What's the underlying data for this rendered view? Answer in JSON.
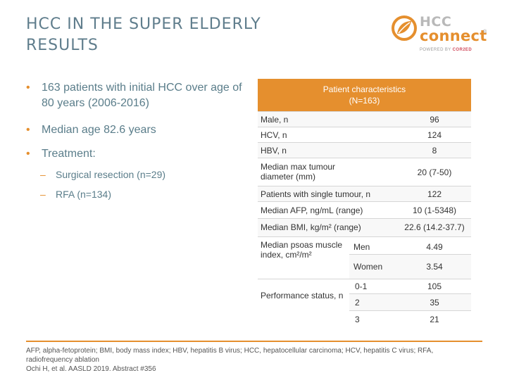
{
  "title_line1": "HCC IN THE SUPER ELDERLY",
  "title_line2": "RESULTS",
  "logo": {
    "hcc": "HCC",
    "connect": "connect",
    "reg": "®",
    "powered_by": "POWERED BY",
    "brand": "COR2ED"
  },
  "bullets": [
    "163 patients with initial HCC over age of 80 years (2006-2016)",
    "Median age 82.6 years",
    "Treatment:"
  ],
  "sub_bullets": [
    "Surgical resection (n=29)",
    "RFA (n=134)"
  ],
  "table": {
    "header_line1": "Patient characteristics",
    "header_line2": "(N=163)",
    "rows": [
      {
        "label": "Male, n",
        "value": "96"
      },
      {
        "label": "HCV, n",
        "value": "124"
      },
      {
        "label": "HBV, n",
        "value": "8"
      },
      {
        "label": "Median max tumour diameter (mm)",
        "value": "20 (7-50)"
      },
      {
        "label": "Patients with single tumour, n",
        "value": "122"
      },
      {
        "label": "Median AFP, ng/mL (range)",
        "value": "10 (1-5348)"
      },
      {
        "label": "Median BMI, kg/m² (range)",
        "value": "22.6 (14.2-37.7)"
      }
    ],
    "psoas": {
      "label": "Median psoas muscle index, cm²/m²",
      "men_label": "Men",
      "men_value": "4.49",
      "women_label": "Women",
      "women_value": "3.54"
    },
    "perf": {
      "label": "Performance status, n",
      "r1_label": "0-1",
      "r1_value": "105",
      "r2_label": "2",
      "r2_value": "35",
      "r3_label": "3",
      "r3_value": "21"
    }
  },
  "footer": {
    "abbrev": "AFP, alpha-fetoprotein; BMI, body mass index; HBV, hepatitis B virus; HCC, hepatocellular carcinoma; HCV, hepatitis C virus; RFA, radiofrequency ablation",
    "reference": "Ochi H, et al. AASLD 2019. Abstract #356"
  },
  "colors": {
    "accent": "#e58f2e",
    "title": "#5f7d8c",
    "brand_red": "#d04a5c"
  },
  "icons": {
    "logo_mark": "leaf-circle-icon",
    "bullet": "bullet-dot",
    "dash": "en-dash"
  }
}
